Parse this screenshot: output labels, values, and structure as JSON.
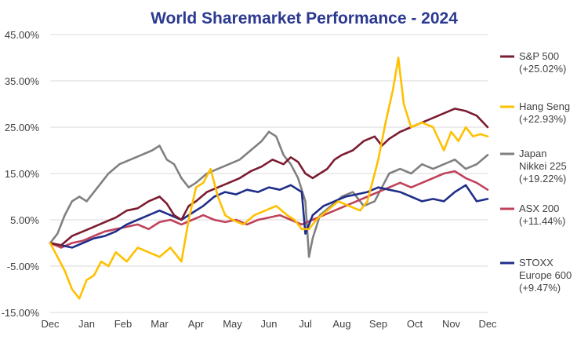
{
  "chart_data": {
    "type": "line",
    "title": "World Sharemarket Performance - 2024",
    "title_color": "#2b3990",
    "xlabel": "",
    "ylabel": "",
    "x_range": [
      0,
      12
    ],
    "x_tick_labels": [
      "Dec",
      "Jan",
      "Feb",
      "Mar",
      "Apr",
      "May",
      "Jun",
      "Jul",
      "Aug",
      "Sep",
      "Oct",
      "Nov",
      "Dec"
    ],
    "y_range": [
      -15,
      45
    ],
    "y_ticks": [
      -15,
      -5,
      5,
      15,
      25,
      35,
      45
    ],
    "y_tick_labels": [
      "-15.00%",
      "-5.00%",
      "5.00%",
      "15.00%",
      "25.00%",
      "35.00%",
      "45.00%"
    ],
    "grid": "horizontal",
    "legend_position": "right",
    "series": [
      {
        "name": "S&P 500",
        "legend_lines": [
          "S&P 500",
          "(+25.02%)"
        ],
        "color": "#7b1c30",
        "points": [
          [
            0,
            0
          ],
          [
            0.3,
            -0.5
          ],
          [
            0.6,
            1.5
          ],
          [
            0.9,
            2.5
          ],
          [
            1.2,
            3.5
          ],
          [
            1.5,
            4.5
          ],
          [
            1.8,
            5.5
          ],
          [
            2.1,
            7
          ],
          [
            2.4,
            7.5
          ],
          [
            2.7,
            9
          ],
          [
            3,
            10
          ],
          [
            3.2,
            8.5
          ],
          [
            3.4,
            6
          ],
          [
            3.6,
            5
          ],
          [
            3.8,
            8
          ],
          [
            4,
            9
          ],
          [
            4.3,
            11
          ],
          [
            4.6,
            12
          ],
          [
            4.9,
            13
          ],
          [
            5.2,
            14
          ],
          [
            5.5,
            15.5
          ],
          [
            5.8,
            16.5
          ],
          [
            6.1,
            18
          ],
          [
            6.4,
            17
          ],
          [
            6.6,
            18.5
          ],
          [
            6.8,
            17.5
          ],
          [
            7,
            15
          ],
          [
            7.2,
            14
          ],
          [
            7.4,
            15
          ],
          [
            7.6,
            16
          ],
          [
            7.8,
            18
          ],
          [
            8,
            19
          ],
          [
            8.3,
            20
          ],
          [
            8.6,
            22
          ],
          [
            8.9,
            23
          ],
          [
            9.1,
            21
          ],
          [
            9.3,
            22.5
          ],
          [
            9.6,
            24
          ],
          [
            9.9,
            25
          ],
          [
            10.2,
            26
          ],
          [
            10.5,
            27
          ],
          [
            10.8,
            28
          ],
          [
            11.1,
            29
          ],
          [
            11.4,
            28.5
          ],
          [
            11.7,
            27.5
          ],
          [
            12,
            25
          ]
        ]
      },
      {
        "name": "Hang Seng",
        "legend_lines": [
          "Hang Seng",
          "(+22.93%)"
        ],
        "color": "#ffc000",
        "points": [
          [
            0,
            0
          ],
          [
            0.2,
            -3
          ],
          [
            0.4,
            -6
          ],
          [
            0.6,
            -10
          ],
          [
            0.8,
            -12
          ],
          [
            1,
            -8
          ],
          [
            1.2,
            -7
          ],
          [
            1.4,
            -4
          ],
          [
            1.6,
            -5
          ],
          [
            1.8,
            -2
          ],
          [
            2.1,
            -4
          ],
          [
            2.4,
            -1
          ],
          [
            2.7,
            -2
          ],
          [
            3,
            -3
          ],
          [
            3.3,
            -1
          ],
          [
            3.6,
            -4
          ],
          [
            3.8,
            5
          ],
          [
            4,
            12
          ],
          [
            4.2,
            13
          ],
          [
            4.4,
            16
          ],
          [
            4.6,
            10
          ],
          [
            4.8,
            6
          ],
          [
            5,
            5
          ],
          [
            5.3,
            4
          ],
          [
            5.6,
            6
          ],
          [
            5.9,
            7
          ],
          [
            6.2,
            8
          ],
          [
            6.5,
            6
          ],
          [
            6.7,
            5
          ],
          [
            6.9,
            3
          ],
          [
            7.1,
            3
          ],
          [
            7.3,
            5
          ],
          [
            7.6,
            7
          ],
          [
            7.9,
            9
          ],
          [
            8.2,
            8
          ],
          [
            8.5,
            7
          ],
          [
            8.7,
            9
          ],
          [
            9,
            18
          ],
          [
            9.2,
            26
          ],
          [
            9.4,
            33
          ],
          [
            9.55,
            40
          ],
          [
            9.7,
            30
          ],
          [
            9.9,
            25
          ],
          [
            10.2,
            26
          ],
          [
            10.5,
            25
          ],
          [
            10.8,
            20
          ],
          [
            11,
            24
          ],
          [
            11.2,
            22
          ],
          [
            11.4,
            25
          ],
          [
            11.6,
            23
          ],
          [
            11.8,
            23.5
          ],
          [
            12,
            23
          ]
        ]
      },
      {
        "name": "Japan Nikkei 225",
        "legend_lines": [
          "Japan",
          "Nikkei 225",
          "(+19.22%)"
        ],
        "color": "#808080",
        "points": [
          [
            0,
            0
          ],
          [
            0.2,
            2
          ],
          [
            0.4,
            6
          ],
          [
            0.6,
            9
          ],
          [
            0.8,
            10
          ],
          [
            1,
            9
          ],
          [
            1.3,
            12
          ],
          [
            1.6,
            15
          ],
          [
            1.9,
            17
          ],
          [
            2.2,
            18
          ],
          [
            2.5,
            19
          ],
          [
            2.8,
            20
          ],
          [
            3,
            21
          ],
          [
            3.2,
            18
          ],
          [
            3.4,
            17
          ],
          [
            3.6,
            14
          ],
          [
            3.8,
            12
          ],
          [
            4,
            13
          ],
          [
            4.3,
            15
          ],
          [
            4.6,
            16
          ],
          [
            4.9,
            17
          ],
          [
            5.2,
            18
          ],
          [
            5.5,
            20
          ],
          [
            5.8,
            22
          ],
          [
            6,
            24
          ],
          [
            6.2,
            23
          ],
          [
            6.4,
            19
          ],
          [
            6.6,
            17
          ],
          [
            6.8,
            14
          ],
          [
            7,
            9
          ],
          [
            7.1,
            -3
          ],
          [
            7.2,
            1
          ],
          [
            7.4,
            6
          ],
          [
            7.7,
            8
          ],
          [
            8,
            10
          ],
          [
            8.3,
            11
          ],
          [
            8.6,
            8
          ],
          [
            8.9,
            9
          ],
          [
            9.1,
            12
          ],
          [
            9.3,
            15
          ],
          [
            9.6,
            16
          ],
          [
            9.9,
            15
          ],
          [
            10.2,
            17
          ],
          [
            10.5,
            16
          ],
          [
            10.8,
            17
          ],
          [
            11.1,
            18
          ],
          [
            11.4,
            16
          ],
          [
            11.7,
            17
          ],
          [
            12,
            19
          ]
        ]
      },
      {
        "name": "ASX 200",
        "legend_lines": [
          "ASX 200",
          "(+11.44%)"
        ],
        "color": "#c0425a",
        "points": [
          [
            0,
            0
          ],
          [
            0.3,
            -1
          ],
          [
            0.6,
            0
          ],
          [
            0.9,
            0.5
          ],
          [
            1.2,
            1.5
          ],
          [
            1.5,
            2.5
          ],
          [
            1.8,
            3
          ],
          [
            2.1,
            3.5
          ],
          [
            2.4,
            4
          ],
          [
            2.7,
            3
          ],
          [
            3,
            4.5
          ],
          [
            3.3,
            5
          ],
          [
            3.6,
            4
          ],
          [
            3.9,
            5
          ],
          [
            4.2,
            6
          ],
          [
            4.5,
            5
          ],
          [
            4.8,
            4.5
          ],
          [
            5.1,
            5
          ],
          [
            5.4,
            4
          ],
          [
            5.7,
            5
          ],
          [
            6,
            5.5
          ],
          [
            6.3,
            6
          ],
          [
            6.6,
            5
          ],
          [
            6.9,
            4
          ],
          [
            7.2,
            5
          ],
          [
            7.5,
            6
          ],
          [
            7.8,
            7
          ],
          [
            8.1,
            8
          ],
          [
            8.4,
            9
          ],
          [
            8.7,
            10
          ],
          [
            9,
            11
          ],
          [
            9.3,
            12
          ],
          [
            9.6,
            13
          ],
          [
            9.9,
            12
          ],
          [
            10.2,
            13
          ],
          [
            10.5,
            14
          ],
          [
            10.8,
            15
          ],
          [
            11.1,
            15.5
          ],
          [
            11.4,
            14
          ],
          [
            11.7,
            13
          ],
          [
            12,
            11.5
          ]
        ]
      },
      {
        "name": "STOXX Europe 600",
        "legend_lines": [
          "STOXX",
          "Europe 600",
          "(+9.47%)"
        ],
        "color": "#1f2e8a",
        "points": [
          [
            0,
            0
          ],
          [
            0.3,
            -0.5
          ],
          [
            0.6,
            -1
          ],
          [
            0.9,
            0
          ],
          [
            1.2,
            1
          ],
          [
            1.5,
            1.5
          ],
          [
            1.8,
            2.5
          ],
          [
            2.1,
            4
          ],
          [
            2.4,
            5
          ],
          [
            2.7,
            6
          ],
          [
            3,
            7
          ],
          [
            3.3,
            6
          ],
          [
            3.6,
            5
          ],
          [
            3.9,
            6.5
          ],
          [
            4.2,
            8
          ],
          [
            4.5,
            10
          ],
          [
            4.8,
            11
          ],
          [
            5.1,
            10.5
          ],
          [
            5.4,
            11.5
          ],
          [
            5.7,
            11
          ],
          [
            6,
            12
          ],
          [
            6.3,
            11.5
          ],
          [
            6.6,
            12.5
          ],
          [
            6.9,
            11
          ],
          [
            7,
            2
          ],
          [
            7.2,
            6
          ],
          [
            7.5,
            8
          ],
          [
            7.8,
            9
          ],
          [
            8.1,
            10
          ],
          [
            8.4,
            10.5
          ],
          [
            8.7,
            11
          ],
          [
            9,
            12
          ],
          [
            9.3,
            11.5
          ],
          [
            9.6,
            11
          ],
          [
            9.9,
            10
          ],
          [
            10.2,
            9
          ],
          [
            10.5,
            9.5
          ],
          [
            10.8,
            9
          ],
          [
            11.1,
            11
          ],
          [
            11.4,
            12.5
          ],
          [
            11.7,
            9
          ],
          [
            12,
            9.5
          ]
        ]
      }
    ]
  }
}
